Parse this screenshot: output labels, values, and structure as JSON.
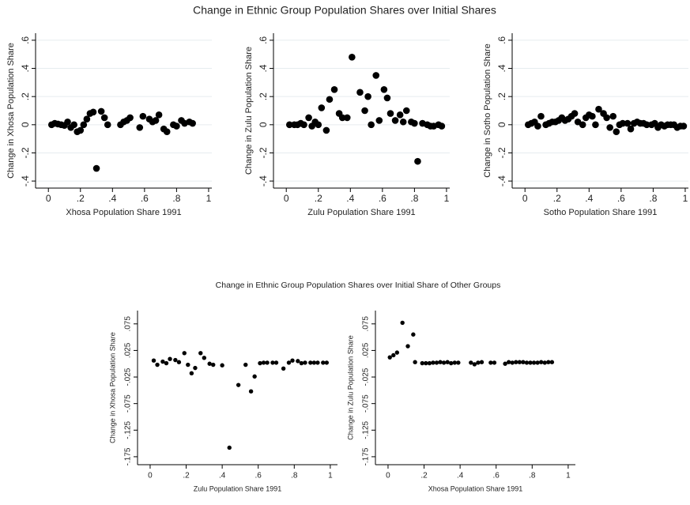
{
  "figure_titles": [
    "Change in Ethnic Group Population Shares over Initial Shares",
    "Change in Ethnic Group Population Shares over Initial Share of Other Groups"
  ],
  "chart_data": [
    {
      "type": "scatter",
      "x_label": "Xhosa Population Share 1991",
      "y_label": "Change in Xhosa Population Share",
      "color": "#000000",
      "grid": true,
      "x": [
        0.02,
        0.04,
        0.06,
        0.08,
        0.1,
        0.12,
        0.14,
        0.16,
        0.18,
        0.2,
        0.22,
        0.24,
        0.26,
        0.28,
        0.3,
        0.33,
        0.35,
        0.37,
        0.45,
        0.47,
        0.49,
        0.51,
        0.57,
        0.59,
        0.63,
        0.65,
        0.67,
        0.69,
        0.72,
        0.74,
        0.78,
        0.8,
        0.83,
        0.85,
        0.88,
        0.9
      ],
      "values": [
        0,
        0.01,
        0.005,
        0,
        -0.005,
        0.02,
        -0.02,
        0,
        -0.05,
        -0.04,
        0,
        0.04,
        0.08,
        0.09,
        -0.31,
        0.095,
        0.05,
        0,
        0,
        0.02,
        0.03,
        0.05,
        -0.02,
        0.06,
        0.04,
        0.02,
        0.03,
        0.07,
        -0.03,
        -0.05,
        0,
        -0.01,
        0.03,
        0.01,
        0.02,
        0.01
      ],
      "xlim": [
        -0.08,
        1.02
      ],
      "ylim": [
        -0.45,
        0.65
      ],
      "xticks": [
        0,
        {
          "value": 0.2,
          "label": ".2"
        },
        {
          "value": 0.4,
          "label": ".4"
        },
        {
          "value": 0.6,
          "label": ".6"
        },
        {
          "value": 0.8,
          "label": ".8"
        },
        1
      ],
      "yticks": [
        {
          "value": -0.4,
          "label": "-.4"
        },
        {
          "value": -0.2,
          "label": "-.2"
        },
        0,
        {
          "value": 0.2,
          "label": ".2"
        },
        {
          "value": 0.4,
          "label": ".4"
        },
        {
          "value": 0.6,
          "label": ".6"
        }
      ]
    },
    {
      "type": "scatter",
      "x_label": "Zulu Population Share 1991",
      "y_label": "Change in Zulu Population Share",
      "color": "#000000",
      "grid": true,
      "x": [
        0.02,
        0.05,
        0.07,
        0.09,
        0.11,
        0.14,
        0.16,
        0.18,
        0.2,
        0.22,
        0.25,
        0.27,
        0.3,
        0.33,
        0.35,
        0.38,
        0.41,
        0.46,
        0.49,
        0.51,
        0.53,
        0.56,
        0.58,
        0.61,
        0.63,
        0.65,
        0.68,
        0.71,
        0.73,
        0.75,
        0.78,
        0.8,
        0.82,
        0.85,
        0.88,
        0.9,
        0.92,
        0.95,
        0.97
      ],
      "values": [
        0,
        0,
        0,
        0.01,
        0,
        0.05,
        -0.01,
        0.02,
        0,
        0.12,
        -0.04,
        0.18,
        0.25,
        0.08,
        0.05,
        0.05,
        0.48,
        0.23,
        0.1,
        0.2,
        0,
        0.35,
        0.03,
        0.25,
        0.19,
        0.08,
        0.03,
        0.07,
        0.02,
        0.1,
        0.02,
        0.01,
        -0.26,
        0.01,
        0,
        -0.01,
        -0.01,
        0,
        -0.01
      ],
      "xlim": [
        -0.08,
        1.02
      ],
      "ylim": [
        -0.45,
        0.65
      ],
      "xticks": [
        0,
        {
          "value": 0.2,
          "label": ".2"
        },
        {
          "value": 0.4,
          "label": ".4"
        },
        {
          "value": 0.6,
          "label": ".6"
        },
        {
          "value": 0.8,
          "label": ".8"
        },
        1
      ],
      "yticks": [
        {
          "value": -0.4,
          "label": "-.4"
        },
        {
          "value": -0.2,
          "label": "-.2"
        },
        0,
        {
          "value": 0.2,
          "label": ".2"
        },
        {
          "value": 0.4,
          "label": ".4"
        },
        {
          "value": 0.6,
          "label": ".6"
        }
      ]
    },
    {
      "type": "scatter",
      "x_label": "Sotho Population Share 1991",
      "y_label": "Change in Sotho Population Share",
      "color": "#000000",
      "grid": true,
      "x": [
        0.02,
        0.04,
        0.06,
        0.08,
        0.1,
        0.13,
        0.15,
        0.17,
        0.19,
        0.21,
        0.23,
        0.25,
        0.27,
        0.29,
        0.31,
        0.33,
        0.36,
        0.38,
        0.4,
        0.42,
        0.44,
        0.46,
        0.49,
        0.51,
        0.53,
        0.55,
        0.57,
        0.59,
        0.61,
        0.64,
        0.66,
        0.68,
        0.7,
        0.72,
        0.74,
        0.76,
        0.79,
        0.81,
        0.83,
        0.85,
        0.87,
        0.89,
        0.91,
        0.93,
        0.95,
        0.97,
        0.99
      ],
      "values": [
        0,
        0.01,
        0.02,
        -0.01,
        0.06,
        0,
        0.01,
        0.02,
        0.02,
        0.03,
        0.05,
        0.03,
        0.04,
        0.06,
        0.08,
        0.02,
        0,
        0.05,
        0.07,
        0.06,
        0,
        0.11,
        0.08,
        0.05,
        -0.02,
        0.06,
        -0.05,
        0,
        0.01,
        0.01,
        -0.03,
        0.01,
        0.02,
        0.01,
        0.01,
        0,
        0,
        0.01,
        -0.02,
        0,
        -0.01,
        0,
        0,
        0,
        -0.02,
        -0.01,
        -0.01
      ],
      "xlim": [
        -0.08,
        1.02
      ],
      "ylim": [
        -0.45,
        0.65
      ],
      "xticks": [
        0,
        {
          "value": 0.2,
          "label": ".2"
        },
        {
          "value": 0.4,
          "label": ".4"
        },
        {
          "value": 0.6,
          "label": ".6"
        },
        {
          "value": 0.8,
          "label": ".8"
        },
        1
      ],
      "yticks": [
        {
          "value": -0.4,
          "label": "-.4"
        },
        {
          "value": -0.2,
          "label": "-.2"
        },
        0,
        {
          "value": 0.2,
          "label": ".2"
        },
        {
          "value": 0.4,
          "label": ".4"
        },
        {
          "value": 0.6,
          "label": ".6"
        }
      ]
    },
    {
      "type": "scatter",
      "x_label": "Zulu Population Share 1991",
      "y_label": "Change in Xhosa Population Share",
      "color": "#000000",
      "grid": false,
      "x": [
        0.02,
        0.04,
        0.07,
        0.09,
        0.11,
        0.14,
        0.16,
        0.19,
        0.21,
        0.23,
        0.25,
        0.28,
        0.3,
        0.33,
        0.35,
        0.4,
        0.44,
        0.49,
        0.53,
        0.56,
        0.58,
        0.61,
        0.63,
        0.65,
        0.68,
        0.7,
        0.74,
        0.77,
        0.79,
        0.82,
        0.84,
        0.86,
        0.89,
        0.91,
        0.93,
        0.96,
        0.98
      ],
      "values": [
        0.006,
        -0.002,
        0.004,
        0.001,
        0.009,
        0.007,
        0.003,
        0.02,
        -0.002,
        -0.018,
        -0.008,
        0.02,
        0.011,
        0,
        -0.002,
        -0.003,
        -0.158,
        -0.04,
        -0.002,
        -0.052,
        -0.024,
        0.001,
        0.002,
        0.002,
        0.002,
        0.002,
        -0.009,
        0.002,
        0.006,
        0.005,
        0.001,
        0.002,
        0.002,
        0.002,
        0.002,
        0.002,
        0.002
      ],
      "xlim": [
        -0.07,
        1.04
      ],
      "ylim": [
        -0.19,
        0.1
      ],
      "xticks": [
        0,
        {
          "value": 0.2,
          "label": ".2"
        },
        {
          "value": 0.4,
          "label": ".4"
        },
        {
          "value": 0.6,
          "label": ".6"
        },
        {
          "value": 0.8,
          "label": ".8"
        },
        1
      ],
      "yticks": [
        {
          "value": -0.175,
          "label": "-.175"
        },
        {
          "value": -0.125,
          "label": "-.125"
        },
        {
          "value": -0.075,
          "label": "-.075"
        },
        {
          "value": -0.025,
          "label": "-.025"
        },
        {
          "value": 0.025,
          "label": ".025"
        },
        {
          "value": 0.075,
          "label": ".075"
        }
      ]
    },
    {
      "type": "scatter",
      "x_label": "Xhosa Population Share 1991",
      "y_label": "Change in Zulu Population Share",
      "color": "#000000",
      "grid": false,
      "x": [
        0.01,
        0.03,
        0.05,
        0.08,
        0.11,
        0.14,
        0.15,
        0.19,
        0.21,
        0.23,
        0.25,
        0.27,
        0.29,
        0.31,
        0.33,
        0.35,
        0.37,
        0.39,
        0.46,
        0.48,
        0.5,
        0.52,
        0.57,
        0.59,
        0.65,
        0.67,
        0.69,
        0.71,
        0.73,
        0.75,
        0.77,
        0.79,
        0.81,
        0.83,
        0.85,
        0.87,
        0.89,
        0.91
      ],
      "values": [
        0.012,
        0.016,
        0.021,
        0.077,
        0.033,
        0.055,
        0.003,
        0.001,
        0.001,
        0.001,
        0.002,
        0.002,
        0.003,
        0.002,
        0.003,
        0.001,
        0.002,
        0.002,
        0.002,
        -0.001,
        0.002,
        0.003,
        0.002,
        0.002,
        0,
        0.003,
        0.002,
        0.003,
        0.003,
        0.003,
        0.002,
        0.002,
        0.002,
        0.002,
        0.003,
        0.002,
        0.003,
        0.003
      ],
      "xlim": [
        -0.07,
        1.04
      ],
      "ylim": [
        -0.19,
        0.1
      ],
      "xticks": [
        0,
        {
          "value": 0.2,
          "label": ".2"
        },
        {
          "value": 0.4,
          "label": ".4"
        },
        {
          "value": 0.6,
          "label": ".6"
        },
        {
          "value": 0.8,
          "label": ".8"
        },
        1
      ],
      "yticks": [
        {
          "value": -0.175,
          "label": "-.175"
        },
        {
          "value": -0.125,
          "label": "-.125"
        },
        {
          "value": -0.075,
          "label": "-.075"
        },
        {
          "value": -0.025,
          "label": "-.025"
        },
        {
          "value": 0.025,
          "label": ".025"
        },
        {
          "value": 0.075,
          "label": ".075"
        }
      ]
    }
  ]
}
